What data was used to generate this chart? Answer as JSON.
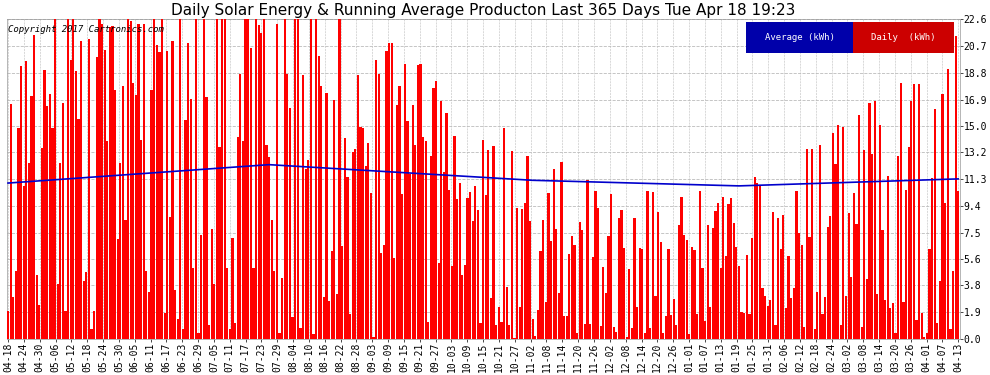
{
  "title": "Daily Solar Energy & Running Average Producton Last 365 Days Tue Apr 18 19:23",
  "copyright": "Copyright 2017 Cartronics.com",
  "yticks": [
    0.0,
    1.9,
    3.8,
    5.6,
    7.5,
    9.4,
    11.3,
    13.2,
    15.0,
    16.9,
    18.8,
    20.7,
    22.6
  ],
  "ymax": 22.6,
  "ymin": 0.0,
  "bar_color": "#FF0000",
  "avg_color": "#0000CC",
  "bg_color": "#FFFFFF",
  "grid_color": "#BBBBBB",
  "legend_avg_bg": "#0000AA",
  "legend_daily_bg": "#CC0000",
  "legend_avg_text": "Average (kWh)",
  "legend_daily_text": "Daily  (kWh)",
  "x_labels": [
    "04-18",
    "04-24",
    "04-30",
    "05-06",
    "05-12",
    "05-18",
    "05-24",
    "05-30",
    "06-05",
    "06-11",
    "06-17",
    "06-23",
    "06-29",
    "07-05",
    "07-11",
    "07-17",
    "07-23",
    "07-29",
    "08-04",
    "08-10",
    "08-16",
    "08-22",
    "08-28",
    "09-03",
    "09-09",
    "09-15",
    "09-21",
    "09-27",
    "10-03",
    "10-09",
    "10-15",
    "10-21",
    "10-27",
    "11-02",
    "11-08",
    "11-14",
    "11-20",
    "11-26",
    "12-02",
    "12-08",
    "12-14",
    "12-20",
    "12-26",
    "01-01",
    "01-07",
    "01-13",
    "01-19",
    "01-25",
    "01-31",
    "02-06",
    "02-12",
    "02-18",
    "02-24",
    "03-02",
    "03-08",
    "03-14",
    "03-20",
    "03-26",
    "04-01",
    "04-07",
    "04-13"
  ],
  "n_days": 365,
  "title_fontsize": 11,
  "tick_fontsize": 7,
  "copyright_fontsize": 6.5
}
